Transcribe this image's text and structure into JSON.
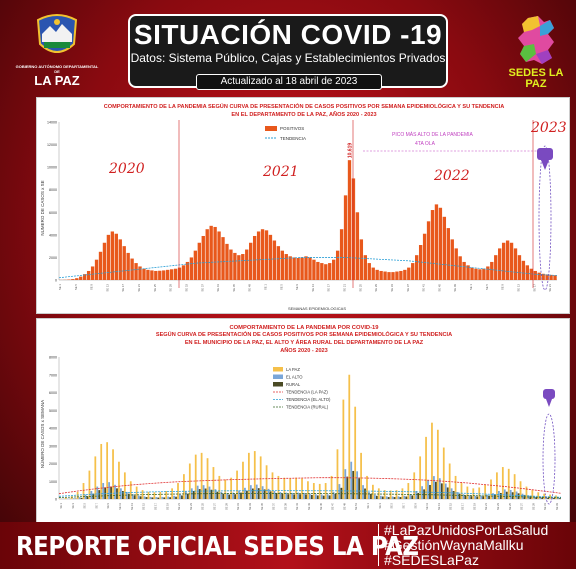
{
  "header": {
    "title": "SITUACIÓN COVID -19",
    "subtitle": "Datos: Sistema Público, Cajas y Establecimientos Privados",
    "updated": "Actualizado  al  18  abril  de  2023"
  },
  "logo_left": {
    "sub": "GOBIERNO AUTÓNOMO DEPARTAMENTAL DE",
    "big": "LA PAZ"
  },
  "logo_right": {
    "text": "SEDES LA PAZ"
  },
  "footer": {
    "title": "REPORTE OFICIAL SEDES LA PAZ",
    "hashtags": [
      "#LaPazUnidosPorLaSalud",
      "#GestiónWaynaMallku",
      "#SEDESLaPaz"
    ]
  },
  "colors": {
    "bar_top": "#e8581c",
    "trend_top": "#2a9fd6",
    "la_paz": "#f5c04a",
    "el_alto": "#7aa6d8",
    "rural": "#4a4a24",
    "trend_lapaz": "#e03030",
    "trend_alto": "#2a9fd6",
    "trend_rural": "#3a6a2a"
  },
  "chart_data": [
    {
      "type": "bar",
      "title": "COMPORTAMIENTO DE LA PANDEMIA SEGÚN CURVA DE PRESENTACIÓN DE CASOS POSITIVOS POR SEMANA EPIDEMIOLÓGICA Y SU TENDENCIA",
      "subtitle": "EN EL DEPARTAMENTO DE LA PAZ, AÑOS 2020 - 2023",
      "xlabel": "SEMANAS EPIDEMIOLOGICAS",
      "ylabel": "NUMERO DE CASOS x SE",
      "ylim": [
        0,
        14000
      ],
      "yticks": [
        0,
        2000,
        4000,
        6000,
        8000,
        10000,
        12000,
        14000
      ],
      "legend": [
        "POSITIVOS",
        "TENDENCIA"
      ],
      "legend_placement": "top-center",
      "year_labels": [
        "2020",
        "2021",
        "2022",
        "2023"
      ],
      "annotation_peak": "PICO MÁS ALTO DE LA PANDEMIA",
      "annotation_wave": "4TA OLA",
      "peak_value_label": "10,619",
      "series": [
        {
          "name": "POSITIVOS",
          "values": [
            10,
            20,
            40,
            80,
            160,
            300,
            520,
            800,
            1200,
            1800,
            2500,
            3300,
            4000,
            4300,
            4100,
            3600,
            3000,
            2400,
            1900,
            1500,
            1200,
            1000,
            900,
            850,
            800,
            820,
            850,
            900,
            950,
            1000,
            1100,
            1300,
            1600,
            2000,
            2600,
            3300,
            3900,
            4500,
            4800,
            4700,
            4300,
            3800,
            3200,
            2700,
            2400,
            2200,
            2300,
            2700,
            3300,
            3900,
            4300,
            4500,
            4400,
            4000,
            3500,
            3000,
            2600,
            2300,
            2100,
            2000,
            1950,
            2000,
            2100,
            2000,
            1800,
            1600,
            1500,
            1400,
            1500,
            1800,
            2600,
            4500,
            7500,
            10619,
            9000,
            6000,
            3600,
            2200,
            1500,
            1100,
            900,
            800,
            750,
            700,
            700,
            750,
            800,
            900,
            1100,
            1500,
            2200,
            3100,
            4100,
            5200,
            6200,
            6700,
            6400,
            5600,
            4600,
            3600,
            2800,
            2100,
            1600,
            1300,
            1100,
            1000,
            950,
            1000,
            1200,
            1600,
            2200,
            2800,
            3300,
            3500,
            3300,
            2800,
            2200,
            1700,
            1300,
            1000,
            800,
            650,
            550,
            500,
            450,
            420
          ]
        },
        {
          "name": "TENDENCIA",
          "values": [
            200,
            300,
            400,
            500,
            600,
            700,
            800,
            900,
            1000,
            1100,
            1200,
            1300,
            1400,
            1500,
            1550,
            1600,
            1650,
            1700,
            1750,
            1800,
            1850,
            1900,
            1950,
            2000,
            2000,
            2000,
            2000,
            2000,
            1950,
            1900,
            1850,
            1800,
            1750,
            1700,
            1600,
            1500,
            1400,
            1300,
            1200,
            1100,
            1000,
            900,
            800,
            700,
            600,
            500,
            450,
            400
          ]
        }
      ]
    },
    {
      "type": "bar",
      "title": "COMPORTAMIENTO DE LA PANDEMIA POR COVID-19",
      "subtitle": "SEGÚN CURVA DE PRESENTACIÓN DE CASOS POSITIVOS POR SEMANA EPIDEMIOLÓGICA Y SU TENDENCIA",
      "subtitle2": "EN EL  MUNICIPIO DE LA PAZ, EL ALTO Y ÁREA RURAL DEL DEPARTAMENTO DE LA PAZ",
      "subtitle3": "AÑOS 2020 - 2023",
      "ylabel": "NÚMERO DE CASOS x SEMANA",
      "ylim": [
        0,
        8000
      ],
      "yticks": [
        0,
        1000,
        2000,
        3000,
        4000,
        5000,
        6000,
        7000,
        8000
      ],
      "legend": [
        "LA PAZ",
        "EL ALTO",
        "RURAL",
        "TENDENCIA (LA PAZ)",
        "TENDENCIA (EL ALTO)",
        "TENDENCIA (RURAL)"
      ],
      "legend_placement": "top-center",
      "series": [
        {
          "name": "LA PAZ",
          "values": [
            20,
            60,
            150,
            400,
            900,
            1600,
            2400,
            3100,
            3200,
            2800,
            2100,
            1500,
            1000,
            700,
            500,
            400,
            380,
            400,
            450,
            600,
            900,
            1400,
            2000,
            2500,
            2600,
            2300,
            1800,
            1300,
            1100,
            1200,
            1600,
            2100,
            2600,
            2700,
            2400,
            1900,
            1500,
            1300,
            1200,
            1150,
            1200,
            1150,
            1000,
            900,
            850,
            900,
            1300,
            2800,
            5600,
            7000,
            5200,
            2600,
            1300,
            800,
            600,
            500,
            480,
            500,
            600,
            900,
            1500,
            2400,
            3500,
            4300,
            3900,
            2900,
            2000,
            1300,
            900,
            700,
            600,
            650,
            800,
            1100,
            1500,
            1800,
            1700,
            1400,
            1000,
            700,
            500,
            380,
            300,
            250,
            200
          ]
        },
        {
          "name": "EL ALTO",
          "values": [
            5,
            15,
            40,
            100,
            250,
            450,
            700,
            900,
            950,
            800,
            600,
            400,
            280,
            200,
            150,
            120,
            110,
            120,
            140,
            180,
            280,
            420,
            600,
            750,
            780,
            700,
            550,
            400,
            330,
            360,
            480,
            630,
            780,
            810,
            720,
            570,
            450,
            390,
            360,
            345,
            360,
            345,
            300,
            270,
            255,
            270,
            390,
            840,
            1680,
            2100,
            1560,
            780,
            390,
            240,
            180,
            150,
            144,
            150,
            180,
            270,
            450,
            720,
            1050,
            1290,
            1170,
            870,
            600,
            390,
            270,
            210,
            180,
            195,
            240,
            330,
            450,
            540,
            510,
            420,
            300,
            210,
            150,
            114,
            90,
            75,
            60
          ]
        },
        {
          "name": "RURAL",
          "values": [
            3,
            8,
            20,
            60,
            150,
            300,
            500,
            650,
            700,
            600,
            450,
            300,
            200,
            150,
            110,
            90,
            80,
            90,
            100,
            130,
            200,
            300,
            450,
            560,
            590,
            520,
            410,
            300,
            250,
            270,
            360,
            470,
            590,
            610,
            540,
            430,
            340,
            290,
            270,
            260,
            270,
            260,
            230,
            200,
            190,
            200,
            290,
            630,
            1260,
            1580,
            1170,
            590,
            290,
            180,
            140,
            110,
            110,
            110,
            140,
            200,
            340,
            540,
            790,
            970,
            880,
            650,
            450,
            290,
            200,
            160,
            140,
            150,
            180,
            250,
            340,
            410,
            380,
            320,
            230,
            160,
            110,
            86,
            68,
            56,
            45
          ]
        },
        {
          "name": "TENDENCIA (LA PAZ)",
          "values": [
            300,
            450,
            580,
            700,
            800,
            880,
            950,
            1000,
            1040,
            1080,
            1110,
            1140,
            1160,
            1180,
            1200,
            1200,
            1190,
            1170,
            1140,
            1100,
            1050,
            980,
            900,
            800,
            700,
            580,
            450,
            320
          ]
        },
        {
          "name": "TENDENCIA (EL ALTO)",
          "values": [
            150,
            220,
            280,
            330,
            370,
            400,
            420,
            440,
            450,
            460,
            465,
            470,
            470,
            468,
            465,
            460,
            450,
            440,
            425,
            405,
            380,
            350,
            315,
            275,
            230,
            185,
            140,
            100
          ]
        },
        {
          "name": "TENDENCIA (RURAL)",
          "values": [
            80,
            120,
            160,
            200,
            230,
            255,
            275,
            290,
            300,
            305,
            310,
            312,
            312,
            310,
            306,
            300,
            292,
            282,
            270,
            255,
            238,
            218,
            196,
            172,
            146,
            118,
            90,
            62
          ]
        }
      ]
    }
  ]
}
